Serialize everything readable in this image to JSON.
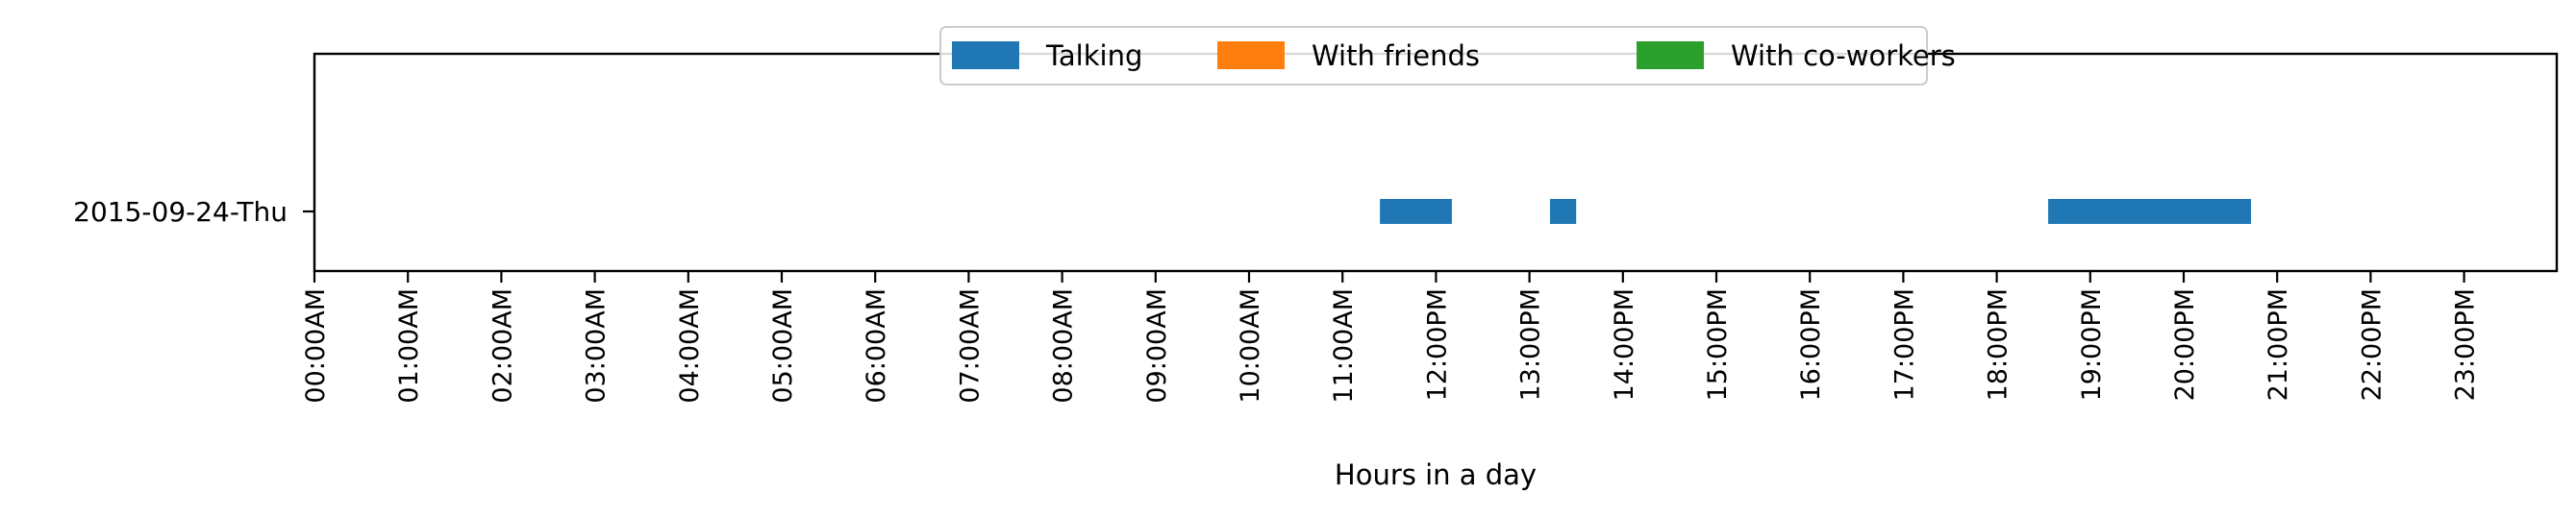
{
  "chart_data": {
    "type": "timeline",
    "title": "",
    "xlabel": "Hours in a day",
    "ylabel": "",
    "xlim": [
      0,
      24
    ],
    "grid": false,
    "legend_position": "top-center",
    "x_ticks": [
      {
        "value": 0,
        "label": "00:00AM"
      },
      {
        "value": 1,
        "label": "01:00AM"
      },
      {
        "value": 2,
        "label": "02:00AM"
      },
      {
        "value": 3,
        "label": "03:00AM"
      },
      {
        "value": 4,
        "label": "04:00AM"
      },
      {
        "value": 5,
        "label": "05:00AM"
      },
      {
        "value": 6,
        "label": "06:00AM"
      },
      {
        "value": 7,
        "label": "07:00AM"
      },
      {
        "value": 8,
        "label": "08:00AM"
      },
      {
        "value": 9,
        "label": "09:00AM"
      },
      {
        "value": 10,
        "label": "10:00AM"
      },
      {
        "value": 11,
        "label": "11:00AM"
      },
      {
        "value": 12,
        "label": "12:00PM"
      },
      {
        "value": 13,
        "label": "13:00PM"
      },
      {
        "value": 14,
        "label": "14:00PM"
      },
      {
        "value": 15,
        "label": "15:00PM"
      },
      {
        "value": 16,
        "label": "16:00PM"
      },
      {
        "value": 17,
        "label": "17:00PM"
      },
      {
        "value": 18,
        "label": "18:00PM"
      },
      {
        "value": 19,
        "label": "19:00PM"
      },
      {
        "value": 20,
        "label": "20:00PM"
      },
      {
        "value": 21,
        "label": "21:00PM"
      },
      {
        "value": 22,
        "label": "22:00PM"
      },
      {
        "value": 23,
        "label": "23:00PM"
      }
    ],
    "categories": [
      "2015-09-24-Thu"
    ],
    "series": [
      {
        "name": "Talking",
        "color": "#1f77b4",
        "intervals": [
          {
            "category": "2015-09-24-Thu",
            "start": 11.4,
            "end": 12.17
          },
          {
            "category": "2015-09-24-Thu",
            "start": 13.22,
            "end": 13.5
          },
          {
            "category": "2015-09-24-Thu",
            "start": 18.55,
            "end": 20.72
          }
        ]
      },
      {
        "name": "With friends",
        "color": "#ff7f0e",
        "intervals": []
      },
      {
        "name": "With co-workers",
        "color": "#2ca02c",
        "intervals": []
      }
    ]
  }
}
